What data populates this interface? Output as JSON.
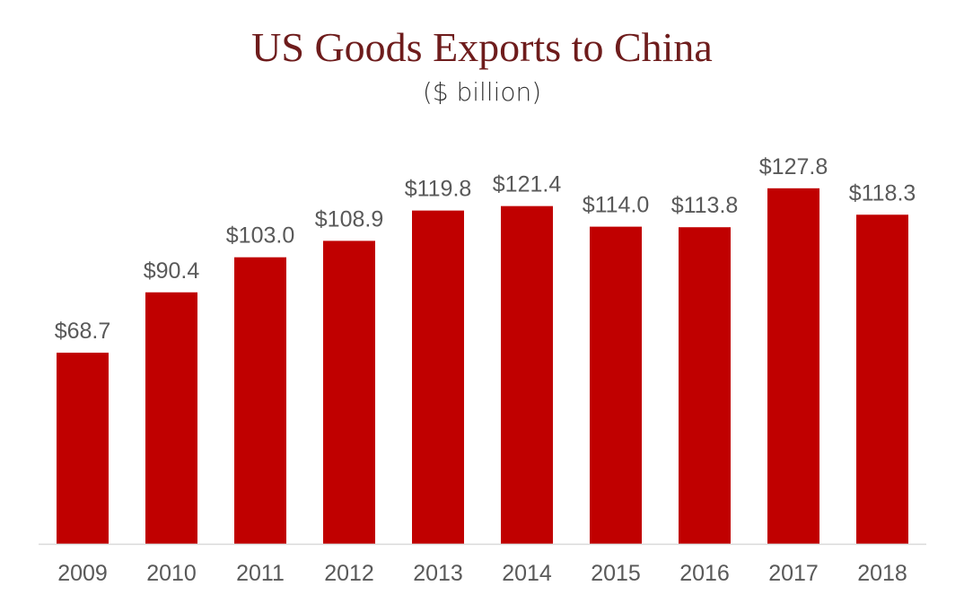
{
  "chart_data": {
    "type": "bar",
    "title": "US Goods Exports to China",
    "subtitle": "($ billion)",
    "xlabel": "",
    "ylabel": "",
    "categories": [
      "2009",
      "2010",
      "2011",
      "2012",
      "2013",
      "2014",
      "2015",
      "2016",
      "2017",
      "2018"
    ],
    "values": [
      68.7,
      90.4,
      103.0,
      108.9,
      119.8,
      121.4,
      114.0,
      113.8,
      127.8,
      118.3
    ],
    "data_labels": [
      "$68.7",
      "$90.4",
      "$103.0",
      "$108.9",
      "$119.8",
      "$121.4",
      "$114.0",
      "$113.8",
      "$127.8",
      "$118.3"
    ],
    "ylim": [
      0,
      140
    ],
    "grid": false,
    "bar_color": "#C00000",
    "title_color": "#6E1C1C"
  }
}
